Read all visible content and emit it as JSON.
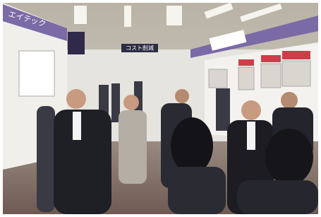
{
  "photo": {
    "signs": {
      "left_booth": "エイテック",
      "center_banner": "コスト削減"
    }
  }
}
